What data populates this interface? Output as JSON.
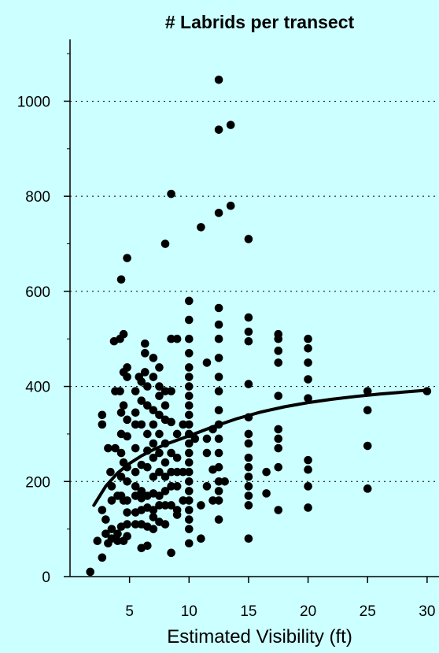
{
  "chart_data": {
    "type": "scatter",
    "title": "# Labrids per transect",
    "xlabel": "Estimated Visibility (ft)",
    "ylabel": "",
    "xlim": [
      0,
      31
    ],
    "ylim": [
      0,
      1130
    ],
    "xticks": [
      5,
      10,
      15,
      20,
      25,
      30
    ],
    "yticks": [
      0,
      200,
      400,
      600,
      800,
      1000
    ],
    "grid": "horizontal-dotted",
    "legend": "none",
    "colors": {
      "background": "#ccffff",
      "points": "#000000",
      "trend": "#000000",
      "grid": "#000000"
    },
    "points": [
      [
        1.7,
        10
      ],
      [
        2.3,
        75
      ],
      [
        2.7,
        40
      ],
      [
        2.7,
        140
      ],
      [
        2.7,
        340
      ],
      [
        2.7,
        320
      ],
      [
        3,
        120
      ],
      [
        3,
        90
      ],
      [
        3.2,
        70
      ],
      [
        3.2,
        270
      ],
      [
        3.4,
        220
      ],
      [
        3.5,
        190
      ],
      [
        3.5,
        160
      ],
      [
        3.5,
        100
      ],
      [
        3.5,
        80
      ],
      [
        3.7,
        495
      ],
      [
        3.8,
        390
      ],
      [
        3.8,
        270
      ],
      [
        4,
        170
      ],
      [
        4,
        90
      ],
      [
        4,
        75
      ],
      [
        4.2,
        500
      ],
      [
        4.2,
        390
      ],
      [
        4.3,
        625
      ],
      [
        4.3,
        345
      ],
      [
        4.3,
        300
      ],
      [
        4.3,
        260
      ],
      [
        4.3,
        210
      ],
      [
        4.3,
        170
      ],
      [
        4.3,
        105
      ],
      [
        4.5,
        510
      ],
      [
        4.5,
        430
      ],
      [
        4.5,
        360
      ],
      [
        4.5,
        240
      ],
      [
        4.5,
        160
      ],
      [
        4.5,
        75
      ],
      [
        4.8,
        670
      ],
      [
        4.8,
        440
      ],
      [
        4.8,
        420
      ],
      [
        4.8,
        330
      ],
      [
        4.8,
        295
      ],
      [
        4.8,
        230
      ],
      [
        4.8,
        200
      ],
      [
        4.8,
        160
      ],
      [
        4.8,
        135
      ],
      [
        4.8,
        110
      ],
      [
        4.8,
        85
      ],
      [
        5.5,
        390
      ],
      [
        5.5,
        345
      ],
      [
        5.5,
        320
      ],
      [
        5.5,
        270
      ],
      [
        5.5,
        220
      ],
      [
        5.5,
        190
      ],
      [
        5.5,
        170
      ],
      [
        5.5,
        135
      ],
      [
        5.5,
        110
      ],
      [
        5.8,
        420
      ],
      [
        6,
        410
      ],
      [
        6,
        370
      ],
      [
        6,
        320
      ],
      [
        6,
        235
      ],
      [
        6,
        180
      ],
      [
        6,
        165
      ],
      [
        6,
        140
      ],
      [
        6,
        110
      ],
      [
        6,
        60
      ],
      [
        6.3,
        490
      ],
      [
        6.3,
        470
      ],
      [
        6.3,
        430
      ],
      [
        6.5,
        400
      ],
      [
        6.5,
        360
      ],
      [
        6.5,
        300
      ],
      [
        6.5,
        265
      ],
      [
        6.5,
        230
      ],
      [
        6.5,
        170
      ],
      [
        6.5,
        145
      ],
      [
        6.5,
        105
      ],
      [
        6.5,
        65
      ],
      [
        7,
        460
      ],
      [
        7,
        420
      ],
      [
        7,
        350
      ],
      [
        7,
        320
      ],
      [
        7,
        280
      ],
      [
        7,
        250
      ],
      [
        7,
        210
      ],
      [
        7,
        175
      ],
      [
        7,
        140
      ],
      [
        7,
        125
      ],
      [
        7,
        100
      ],
      [
        7.5,
        440
      ],
      [
        7.5,
        400
      ],
      [
        7.5,
        380
      ],
      [
        7.5,
        340
      ],
      [
        7.5,
        300
      ],
      [
        7.5,
        260
      ],
      [
        7.5,
        220
      ],
      [
        7.5,
        170
      ],
      [
        7.5,
        150
      ],
      [
        7.5,
        115
      ],
      [
        8,
        700
      ],
      [
        8,
        390
      ],
      [
        8,
        360
      ],
      [
        8,
        330
      ],
      [
        8,
        280
      ],
      [
        8,
        240
      ],
      [
        8,
        210
      ],
      [
        8,
        180
      ],
      [
        8,
        150
      ],
      [
        8,
        110
      ],
      [
        8.5,
        805
      ],
      [
        8.5,
        500
      ],
      [
        8.5,
        390
      ],
      [
        8.5,
        325
      ],
      [
        8.5,
        260
      ],
      [
        8.5,
        220
      ],
      [
        8.5,
        190
      ],
      [
        8.5,
        150
      ],
      [
        8.5,
        50
      ],
      [
        9,
        500
      ],
      [
        9,
        300
      ],
      [
        9,
        250
      ],
      [
        9,
        220
      ],
      [
        9,
        190
      ],
      [
        9,
        140
      ],
      [
        9,
        130
      ],
      [
        9.5,
        320
      ],
      [
        9.5,
        220
      ],
      [
        9.5,
        160
      ],
      [
        10,
        580
      ],
      [
        10,
        540
      ],
      [
        10,
        500
      ],
      [
        10,
        470
      ],
      [
        10,
        440
      ],
      [
        10,
        420
      ],
      [
        10,
        400
      ],
      [
        10,
        380
      ],
      [
        10,
        360
      ],
      [
        10,
        340
      ],
      [
        10,
        320
      ],
      [
        10,
        300
      ],
      [
        10,
        280
      ],
      [
        10,
        260
      ],
      [
        10,
        240
      ],
      [
        10,
        220
      ],
      [
        10,
        200
      ],
      [
        10,
        180
      ],
      [
        10,
        160
      ],
      [
        10,
        140
      ],
      [
        10,
        120
      ],
      [
        10,
        100
      ],
      [
        10,
        70
      ],
      [
        10.5,
        290
      ],
      [
        11,
        735
      ],
      [
        11,
        150
      ],
      [
        11,
        80
      ],
      [
        11.5,
        450
      ],
      [
        11.5,
        290
      ],
      [
        11.5,
        260
      ],
      [
        11.5,
        190
      ],
      [
        12,
        310
      ],
      [
        12,
        225
      ],
      [
        12,
        160
      ],
      [
        12.5,
        1045
      ],
      [
        12.5,
        940
      ],
      [
        12.5,
        765
      ],
      [
        12.5,
        565
      ],
      [
        12.5,
        530
      ],
      [
        12.5,
        500
      ],
      [
        12.5,
        460
      ],
      [
        12.5,
        420
      ],
      [
        12.5,
        390
      ],
      [
        12.5,
        350
      ],
      [
        12.5,
        320
      ],
      [
        12.5,
        290
      ],
      [
        12.5,
        260
      ],
      [
        12.5,
        230
      ],
      [
        12.5,
        200
      ],
      [
        12.5,
        180
      ],
      [
        12.5,
        160
      ],
      [
        12.5,
        120
      ],
      [
        13,
        200
      ],
      [
        13.5,
        950
      ],
      [
        13.5,
        780
      ],
      [
        15,
        710
      ],
      [
        15,
        545
      ],
      [
        15,
        515
      ],
      [
        15,
        495
      ],
      [
        15,
        405
      ],
      [
        15,
        335
      ],
      [
        15,
        300
      ],
      [
        15,
        280
      ],
      [
        15,
        250
      ],
      [
        15,
        230
      ],
      [
        15,
        210
      ],
      [
        15,
        190
      ],
      [
        15,
        170
      ],
      [
        15,
        150
      ],
      [
        15,
        80
      ],
      [
        16.5,
        220
      ],
      [
        16.5,
        175
      ],
      [
        17.5,
        510
      ],
      [
        17.5,
        500
      ],
      [
        17.5,
        475
      ],
      [
        17.5,
        450
      ],
      [
        17.5,
        380
      ],
      [
        17.5,
        310
      ],
      [
        17.5,
        290
      ],
      [
        17.5,
        270
      ],
      [
        17.5,
        230
      ],
      [
        17.5,
        140
      ],
      [
        20,
        500
      ],
      [
        20,
        480
      ],
      [
        20,
        450
      ],
      [
        20,
        415
      ],
      [
        20,
        375
      ],
      [
        20,
        245
      ],
      [
        20,
        225
      ],
      [
        20,
        190
      ],
      [
        20,
        145
      ],
      [
        25,
        390
      ],
      [
        25,
        350
      ],
      [
        25,
        275
      ],
      [
        25,
        185
      ],
      [
        30,
        390
      ]
    ],
    "trend": {
      "x": [
        2,
        3,
        4,
        5,
        6,
        7,
        8,
        10,
        12,
        14,
        16,
        18,
        20,
        22,
        24,
        26,
        28,
        30
      ],
      "y": [
        150,
        190,
        218,
        238,
        254,
        267,
        278,
        296,
        315,
        332,
        346,
        357,
        366,
        373,
        379,
        384,
        388,
        392
      ]
    }
  }
}
